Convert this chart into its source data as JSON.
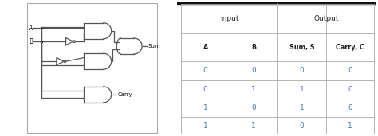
{
  "table_headers_top": [
    "Input",
    "Output"
  ],
  "table_headers_mid": [
    "A",
    "B",
    "Sum, S",
    "Carry, C"
  ],
  "table_data": [
    [
      "0",
      "0",
      "0",
      "0"
    ],
    [
      "0",
      "1",
      "1",
      "0"
    ],
    [
      "1",
      "0",
      "1",
      "0"
    ],
    [
      "1",
      "1",
      "0",
      "1"
    ]
  ],
  "data_color": "#4472C4",
  "header_color": "#222222",
  "grid_color": "#aaaaaa",
  "bg_color": "#ffffff",
  "border_color": "#aaaaaa",
  "label_A": "A",
  "label_B": "B",
  "label_Sum": "Sum",
  "label_Carry": "Carry",
  "circuit_line_color": "#555555",
  "bottom_bar_color": "#111111"
}
